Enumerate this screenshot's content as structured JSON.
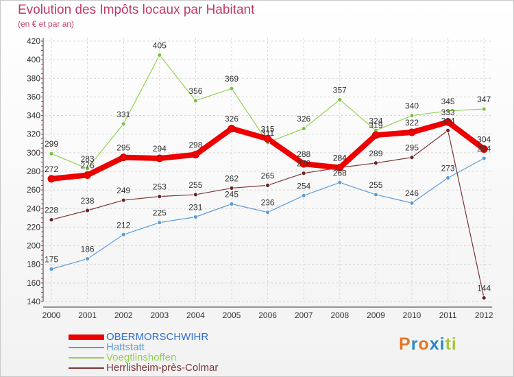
{
  "title": "Evolution des Impôts locaux par Habitant",
  "subtitle": "(en € et par an)",
  "logo": {
    "text": "Proxiti",
    "colors": [
      "#e8731f",
      "#2e86c1",
      "#e8731f",
      "#2e86c1",
      "#2e86c1",
      "#a8c63c",
      "#a8c63c"
    ]
  },
  "chart_data": {
    "type": "line",
    "title": "Evolution des Impôts locaux par Habitant",
    "ylabel": "(en € et par an)",
    "categories": [
      "2000",
      "2001",
      "2002",
      "2003",
      "2004",
      "2005",
      "2006",
      "2007",
      "2008",
      "2009",
      "2010",
      "2011",
      "2012"
    ],
    "ylim": [
      140,
      420
    ],
    "yticks": [
      140,
      160,
      180,
      200,
      220,
      240,
      260,
      280,
      300,
      320,
      340,
      360,
      380,
      400,
      420
    ],
    "grid": true,
    "legend": "bottom-left",
    "series": [
      {
        "name": "Hattstatt",
        "color": "#5b9bd5",
        "marker": "#5b9bd5",
        "width": 1.2,
        "values": [
          175,
          186,
          212,
          225,
          231,
          245,
          236,
          254,
          268,
          255,
          246,
          273,
          294
        ]
      },
      {
        "name": "Voegtlinshoffen",
        "color": "#92d050",
        "marker": "#7ac143",
        "width": 1.2,
        "values": [
          299,
          283,
          331,
          405,
          356,
          369,
          311,
          326,
          357,
          324,
          340,
          345,
          347
        ]
      },
      {
        "name": "Herrlisheim-près-Colmar",
        "color": "#7a3535",
        "marker": "#6b2424",
        "width": 1.2,
        "values": [
          228,
          238,
          249,
          253,
          255,
          262,
          265,
          278,
          284,
          289,
          295,
          324,
          144
        ]
      },
      {
        "name": "OBERMORSCHWIHR",
        "color": "#ee0000",
        "marker": "#ee0000",
        "width": 8,
        "values": [
          272,
          276,
          295,
          294,
          298,
          326,
          315,
          288,
          284,
          319,
          322,
          333,
          304
        ]
      }
    ],
    "legend_order": [
      "OBERMORSCHWIHR",
      "Hattstatt",
      "Voegtlinshoffen",
      "Herrlisheim-près-Colmar"
    ]
  }
}
